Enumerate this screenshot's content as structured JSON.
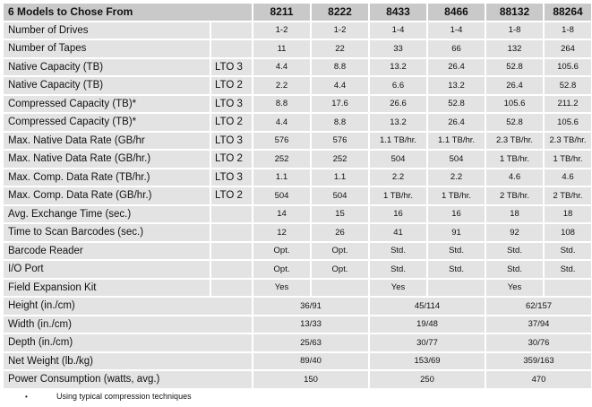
{
  "header": {
    "title": "6 Models to Chose From",
    "models": [
      "8211",
      "8222",
      "8433",
      "8466",
      "88132",
      "88264"
    ]
  },
  "rows": [
    {
      "label": "Number of Drives",
      "lto": "",
      "values": [
        "1-2",
        "1-2",
        "1-4",
        "1-4",
        "1-8",
        "1-8"
      ]
    },
    {
      "label": "Number of Tapes",
      "lto": "",
      "values": [
        "11",
        "22",
        "33",
        "66",
        "132",
        "264"
      ]
    },
    {
      "label": "Native Capacity (TB)",
      "lto": "LTO 3",
      "values": [
        "4.4",
        "8.8",
        "13.2",
        "26.4",
        "52.8",
        "105.6"
      ]
    },
    {
      "label": "Native Capacity (TB)",
      "lto": "LTO 2",
      "values": [
        "2.2",
        "4.4",
        "6.6",
        "13.2",
        "26.4",
        "52.8"
      ]
    },
    {
      "label": "Compressed Capacity (TB)*",
      "lto": "LTO 3",
      "values": [
        "8.8",
        "17.6",
        "26.6",
        "52.8",
        "105.6",
        "211.2"
      ]
    },
    {
      "label": "Compressed Capacity (TB)*",
      "lto": "LTO 2",
      "values": [
        "4.4",
        "8.8",
        "13.2",
        "26.4",
        "52.8",
        "105.6"
      ]
    },
    {
      "label": "Max. Native Data Rate (GB/hr",
      "lto": "LTO 3",
      "values": [
        "576",
        "576",
        "1.1 TB/hr.",
        "1.1 TB/hr.",
        "2.3 TB/hr.",
        "2.3 TB/hr."
      ]
    },
    {
      "label": "Max. Native Data Rate (GB/hr.)",
      "lto": "LTO 2",
      "values": [
        "252",
        "252",
        "504",
        "504",
        "1 TB/hr.",
        "1 TB/hr."
      ]
    },
    {
      "label": "Max. Comp. Data Rate (TB/hr.)",
      "lto": "LTO 3",
      "values": [
        "1.1",
        "1.1",
        "2.2",
        "2.2",
        "4.6",
        "4.6"
      ]
    },
    {
      "label": "Max. Comp. Data Rate (GB/hr.)",
      "lto": "LTO 2",
      "values": [
        "504",
        "504",
        "1 TB/hr.",
        "1 TB/hr.",
        "2 TB/hr.",
        "2 TB/hr."
      ]
    },
    {
      "label": "Avg. Exchange Time (sec.)",
      "lto": "",
      "values": [
        "14",
        "15",
        "16",
        "16",
        "18",
        "18"
      ]
    },
    {
      "label": "Time to Scan Barcodes (sec.)",
      "lto": "",
      "values": [
        "12",
        "26",
        "41",
        "91",
        "92",
        "108"
      ]
    },
    {
      "label": "Barcode Reader",
      "lto": "",
      "values": [
        "Opt.",
        "Opt.",
        "Std.",
        "Std.",
        "Std.",
        "Std."
      ]
    },
    {
      "label": "I/O Port",
      "lto": "",
      "values": [
        "Opt.",
        "Opt.",
        "Std.",
        "Std.",
        "Std.",
        "Std."
      ]
    },
    {
      "label": "Field Expansion Kit",
      "lto": "",
      "values": [
        "Yes",
        "",
        "Yes",
        "",
        "Yes",
        ""
      ]
    }
  ],
  "merged_rows": [
    {
      "label": "Height (in./cm)",
      "values": [
        "36/91",
        "45/114",
        "62/157"
      ]
    },
    {
      "label": "Width (in./cm)",
      "values": [
        "13/33",
        "19/48",
        "37/94"
      ]
    },
    {
      "label": "Depth (in./cm)",
      "values": [
        "25/63",
        "30/77",
        "30/76"
      ]
    },
    {
      "label": "Net Weight (lb./kg)",
      "values": [
        "89/40",
        "153/69",
        "359/163"
      ]
    },
    {
      "label": "Power Consumption (watts, avg.)",
      "values": [
        "150",
        "250",
        "470"
      ]
    }
  ],
  "footnote": {
    "bullet": "•",
    "text": "Using typical compression techniques"
  }
}
